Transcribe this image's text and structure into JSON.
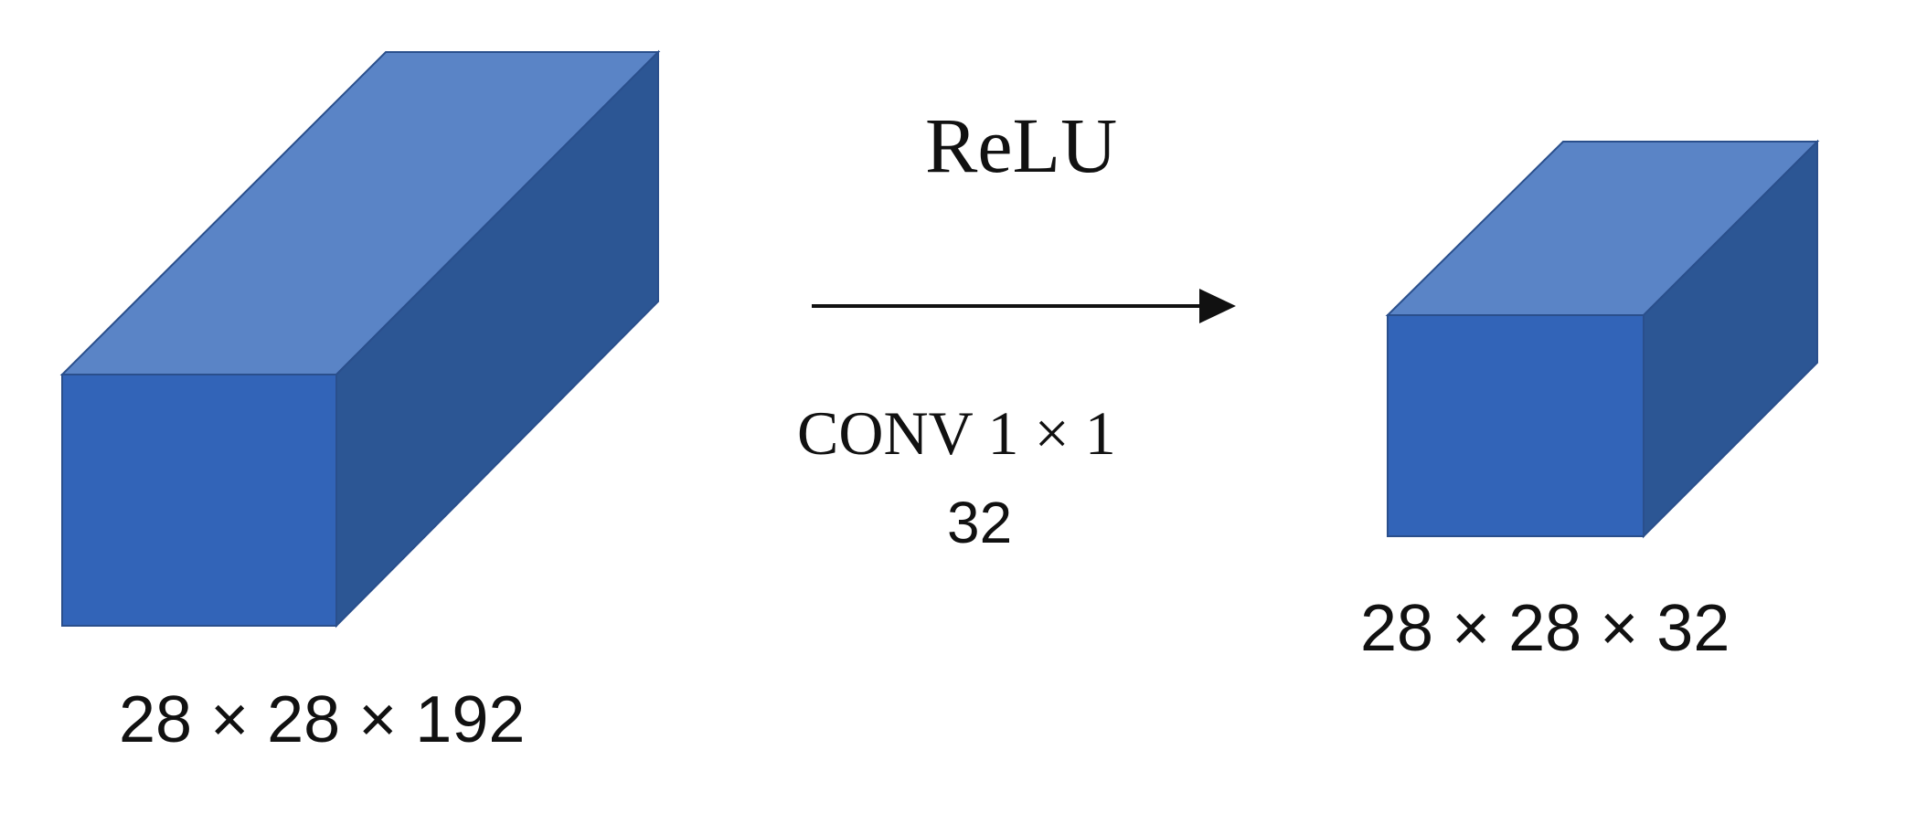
{
  "input_volume": {
    "label": "28 × 28 × 192",
    "height": 28,
    "width": 28,
    "channels": 192
  },
  "output_volume": {
    "label": "28 × 28 × 32",
    "height": 28,
    "width": 28,
    "channels": 32
  },
  "operation": {
    "activation": "ReLU",
    "conv_label": "CONV 1 × 1",
    "filter_count": "32"
  },
  "colors": {
    "cube_front": "#3264b8",
    "cube_top": "#5a84c6",
    "cube_side": "#2c5694",
    "cube_edge": "#2a4f8c",
    "arrow": "#111111"
  }
}
